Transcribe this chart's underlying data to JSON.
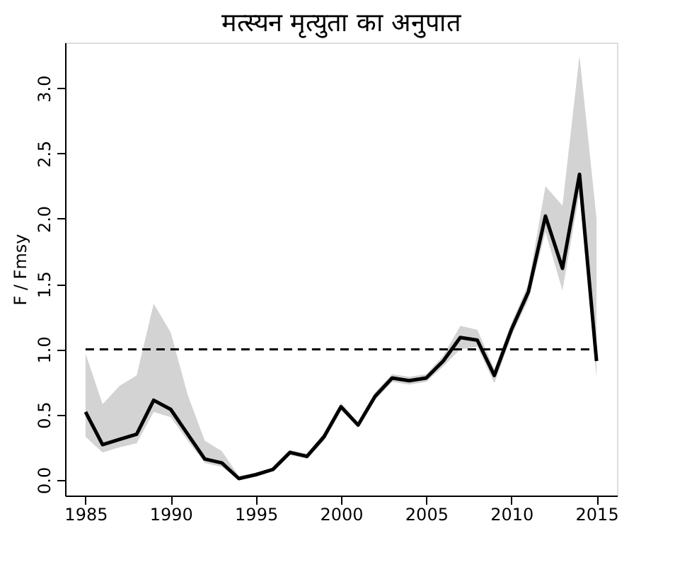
{
  "chart_data": {
    "type": "line",
    "title": "मत्स्यन मृत्युता का अनुपात",
    "ylabel": "F / Fmsy",
    "x": [
      1985,
      1986,
      1987,
      1988,
      1989,
      1990,
      1991,
      1992,
      1993,
      1994,
      1995,
      1996,
      1997,
      1998,
      1999,
      2000,
      2001,
      2002,
      2003,
      2004,
      2005,
      2006,
      2007,
      2008,
      2009,
      2010,
      2011,
      2012,
      2013,
      2014,
      2015
    ],
    "series": [
      {
        "color": "#000000",
        "values": [
          0.52,
          0.27,
          0.31,
          0.35,
          0.61,
          0.54,
          0.35,
          0.16,
          0.13,
          0.01,
          0.04,
          0.08,
          0.21,
          0.18,
          0.33,
          0.56,
          0.42,
          0.64,
          0.78,
          0.76,
          0.78,
          0.91,
          1.09,
          1.07,
          0.8,
          1.15,
          1.44,
          2.02,
          1.62,
          2.34,
          0.91
        ],
        "lower": [
          0.33,
          0.21,
          0.25,
          0.28,
          0.52,
          0.48,
          0.3,
          0.13,
          0.1,
          0.0,
          0.03,
          0.07,
          0.19,
          0.16,
          0.3,
          0.53,
          0.4,
          0.61,
          0.75,
          0.73,
          0.75,
          0.87,
          1.0,
          1.02,
          0.74,
          1.1,
          1.38,
          1.9,
          1.45,
          2.2,
          0.78
        ],
        "upper": [
          0.97,
          0.58,
          0.72,
          0.8,
          1.35,
          1.13,
          0.65,
          0.3,
          0.22,
          0.03,
          0.05,
          0.09,
          0.23,
          0.2,
          0.36,
          0.59,
          0.44,
          0.67,
          0.81,
          0.79,
          0.81,
          0.95,
          1.18,
          1.15,
          0.85,
          1.2,
          1.5,
          2.25,
          2.1,
          3.25,
          2.0
        ]
      }
    ],
    "ref_lines": [
      {
        "axis": "y",
        "value": 1.0,
        "color": "#000000",
        "line_style": "dashed"
      }
    ],
    "xlim": [
      1983.8,
      2016.2
    ],
    "xticks": [
      1985,
      1990,
      1995,
      2000,
      2005,
      2010,
      2015
    ],
    "ylim": [
      -0.12,
      3.35
    ],
    "yticks": [
      {
        "value": 0,
        "label": "0.0"
      },
      {
        "value": 0.5,
        "label": "0.5"
      },
      {
        "value": 1,
        "label": "1.0"
      },
      {
        "value": 1.5,
        "label": "1.5"
      },
      {
        "value": 2,
        "label": "2.0"
      },
      {
        "value": 2.5,
        "label": "2.5"
      },
      {
        "value": 3,
        "label": "3.0"
      }
    ],
    "marker": "none"
  }
}
